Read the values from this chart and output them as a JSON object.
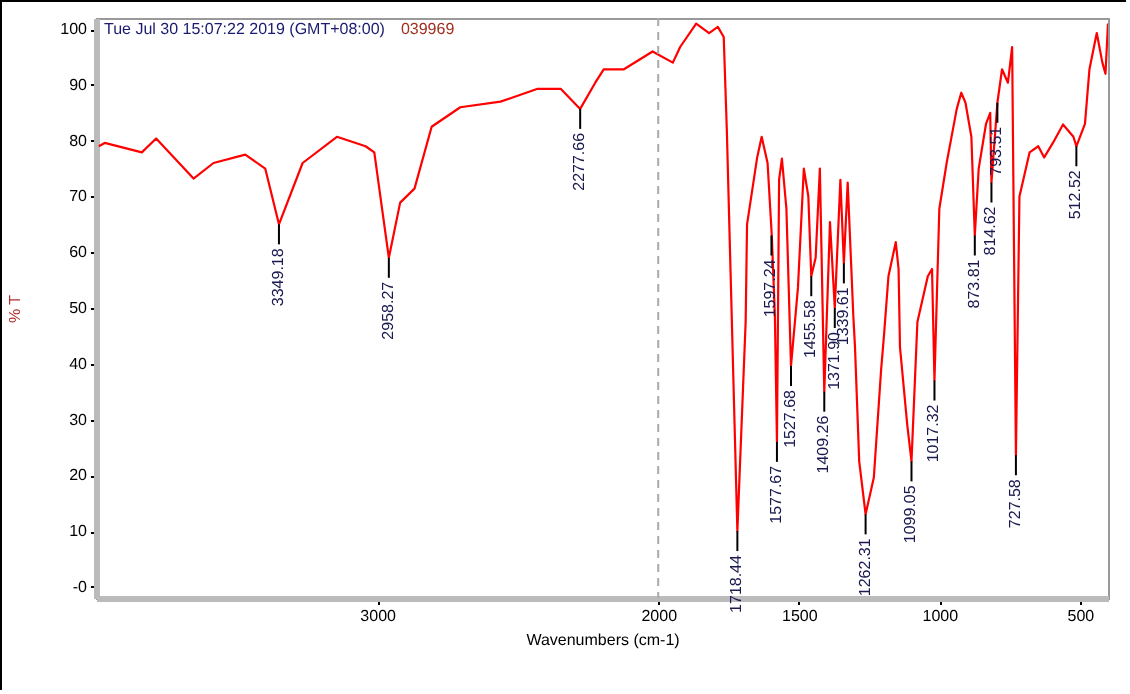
{
  "chart_data": {
    "type": "line",
    "xlabel": "Wavenumbers (cm-1)",
    "ylabel": "% T",
    "x": [
      3990,
      3969,
      3837,
      3786,
      3653,
      3582,
      3469,
      3398,
      3349.18,
      3265,
      3143,
      3041,
      3010,
      2958.27,
      2918,
      2867,
      2806,
      2704,
      2561,
      2429,
      2347,
      2277.66,
      2224,
      2194,
      2122,
      2020,
      1948,
      1922,
      1865,
      1819,
      1788,
      1767,
      1756,
      1718.44,
      1689,
      1684,
      1648,
      1632,
      1611,
      1596,
      1585,
      1577.67,
      1570,
      1560,
      1544,
      1527.68,
      1503,
      1482,
      1466,
      1455.58,
      1440,
      1425,
      1409.26,
      1389,
      1371.9,
      1352,
      1339.61,
      1326,
      1306,
      1300,
      1285,
      1262.31,
      1233,
      1207,
      1197,
      1181,
      1155,
      1145,
      1140,
      1114,
      1099.05,
      1078,
      1041,
      1026,
      1017.32,
      1000,
      974,
      938,
      922,
      907,
      886,
      873.81,
      860,
      834,
      819,
      814.62,
      793.51,
      777,
      756,
      741,
      727.58,
      715,
      679,
      648,
      627,
      596,
      560,
      523,
      512.52,
      482,
      466,
      440,
      420,
      409,
      400
    ],
    "values": [
      79,
      79.6,
      77.9,
      80.4,
      73.2,
      76,
      77.5,
      75,
      65,
      76,
      80.7,
      79,
      77.9,
      59,
      68.9,
      71.4,
      82.5,
      86,
      87,
      89.3,
      89.3,
      85.7,
      90.4,
      92.8,
      92.8,
      96,
      94,
      96.8,
      101,
      99.3,
      100.4,
      98.6,
      82,
      10,
      47.5,
      65,
      77,
      80.7,
      76,
      63,
      48.6,
      26,
      73,
      76.8,
      67.8,
      39.6,
      53.6,
      75,
      70,
      55.7,
      59,
      75,
      35,
      65.4,
      50,
      73,
      58,
      72.5,
      48.6,
      43,
      22.5,
      13,
      19.6,
      39,
      45,
      55.7,
      61.8,
      57,
      43,
      29,
      22.5,
      47.5,
      55.7,
      57,
      37,
      67.8,
      76,
      85.7,
      88.6,
      86.8,
      80.7,
      63,
      75,
      83,
      85,
      72.5,
      86.8,
      92.8,
      90.4,
      96.8,
      23.6,
      70,
      77.9,
      79,
      77,
      79.6,
      82.9,
      80.7,
      79,
      83,
      92.8,
      99.3,
      94,
      92,
      101
    ],
    "color": "#ff0000",
    "xlim": [
      4000,
      400
    ],
    "xticks": [
      3000,
      2000,
      1500,
      1000,
      500
    ],
    "ylim": [
      -2,
      102
    ],
    "yticks": [
      {
        "value": 0,
        "label": "-0"
      },
      10,
      20,
      30,
      40,
      50,
      60,
      70,
      80,
      90,
      100
    ],
    "grid": false,
    "ref_lines": [
      {
        "axis": "x",
        "value": 2000,
        "color": "#aaaaaa",
        "line_style": "dashed"
      }
    ],
    "annotations": [
      "Tue Jul 30 15:07:22 2019 (GMT+08:00)",
      "039969",
      {
        "text": "3349.18",
        "x": 3349.18,
        "y": 65
      },
      {
        "text": "2958.27",
        "x": 2958.27,
        "y": 59
      },
      {
        "text": "2277.66",
        "x": 2277.66,
        "y": 85.7
      },
      {
        "text": "1718.44",
        "x": 1718.44,
        "y": 10
      },
      {
        "text": "1597.24",
        "x": 1597.24,
        "y": 63
      },
      {
        "text": "1577.67",
        "x": 1577.67,
        "y": 26
      },
      {
        "text": "1527.68",
        "x": 1527.68,
        "y": 39.6
      },
      {
        "text": "1455.58",
        "x": 1455.58,
        "y": 55.7
      },
      {
        "text": "1409.26",
        "x": 1409.26,
        "y": 35
      },
      {
        "text": "1371.90",
        "x": 1371.9,
        "y": 50
      },
      {
        "text": "1339.61",
        "x": 1339.61,
        "y": 58
      },
      {
        "text": "1262.31",
        "x": 1262.31,
        "y": 13
      },
      {
        "text": "1099.05",
        "x": 1099.05,
        "y": 22.5
      },
      {
        "text": "1017.32",
        "x": 1017.32,
        "y": 37
      },
      {
        "text": "873.81",
        "x": 873.81,
        "y": 63
      },
      {
        "text": "814.62",
        "x": 814.62,
        "y": 72.5
      },
      {
        "text": "793.51",
        "x": 793.51,
        "y": 86.8
      },
      {
        "text": "727.58",
        "x": 727.58,
        "y": 23.6
      },
      {
        "text": "512.52",
        "x": 512.52,
        "y": 79
      }
    ]
  }
}
